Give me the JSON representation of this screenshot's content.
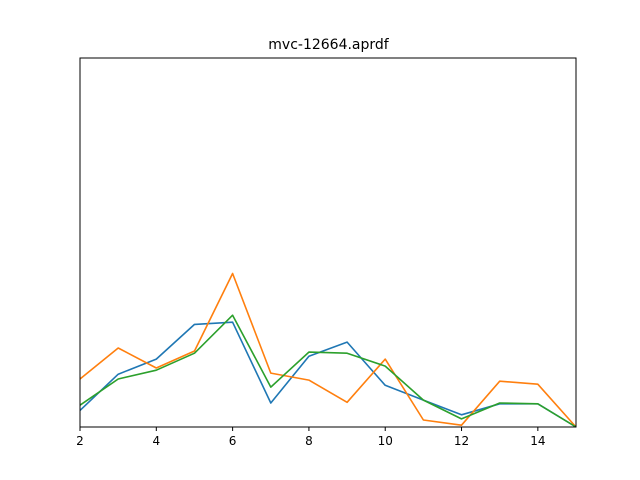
{
  "chart_data": {
    "type": "line",
    "title": "mvc-12664.aprdf",
    "xlabel": "",
    "ylabel": "",
    "xlim": [
      2,
      15
    ],
    "ylim": [
      0,
      1
    ],
    "x_ticks": [
      2,
      4,
      6,
      8,
      10,
      12,
      14
    ],
    "y_ticks_shown": false,
    "grid": false,
    "legend": "none",
    "x": [
      2,
      3,
      4,
      5,
      6,
      7,
      8,
      9,
      10,
      11,
      12,
      13,
      14,
      15
    ],
    "series": [
      {
        "color": "#1f77b4",
        "values": [
          0.045,
          0.143,
          0.184,
          0.278,
          0.284,
          0.065,
          0.192,
          0.23,
          0.113,
          0.073,
          0.033,
          0.063,
          0.063,
          0.0
        ]
      },
      {
        "color": "#ff7f0e",
        "values": [
          0.13,
          0.214,
          0.16,
          0.206,
          0.416,
          0.146,
          0.127,
          0.067,
          0.184,
          0.019,
          0.005,
          0.124,
          0.116,
          0.0
        ]
      },
      {
        "color": "#2ca02c",
        "values": [
          0.059,
          0.13,
          0.154,
          0.2,
          0.303,
          0.108,
          0.203,
          0.2,
          0.165,
          0.073,
          0.022,
          0.065,
          0.063,
          0.0
        ]
      }
    ]
  }
}
